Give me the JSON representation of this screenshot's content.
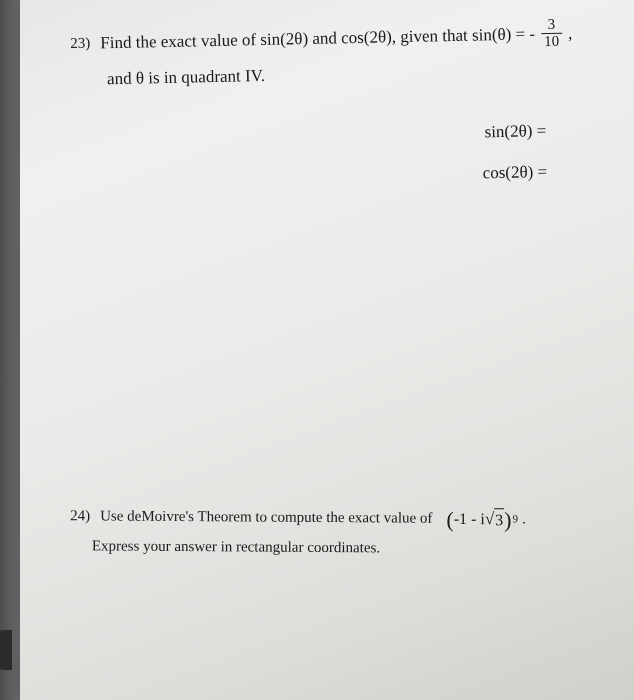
{
  "page": {
    "background_gradient": [
      "#c5c8cb",
      "#d8dadb",
      "#e8e9e9",
      "#dcdddc",
      "#d2d3d2",
      "#bfc0bf"
    ],
    "paper_gradient": [
      "#e6e7e6",
      "#f0f0ef",
      "#eaeae8",
      "#ddddda",
      "#cfcfcc"
    ],
    "text_color": "#1a1a1a",
    "font_family": "Georgia, Times New Roman, serif"
  },
  "q23": {
    "number": "23)",
    "text_part1": "Find the exact value of sin(2θ) and cos(2θ), given that sin(θ) = -",
    "fraction": {
      "num": "3",
      "den": "10"
    },
    "text_part2": ",",
    "line2": "and θ is in quadrant IV.",
    "answer1": "sin(2θ) =",
    "answer2": "cos(2θ) =",
    "font_size": 17,
    "rotation_deg": -1.2
  },
  "q24": {
    "number": "24)",
    "text_part1": "Use deMoivre's Theorem to compute the exact value of",
    "expr": {
      "open": "(",
      "inner_prefix": "-1 - i",
      "sqrt_arg": "3",
      "close": ")",
      "exponent": "9"
    },
    "text_part2": ".",
    "line2": "Express your answer in rectangular coordinates.",
    "font_size": 15,
    "rotation_deg": 0.4
  }
}
